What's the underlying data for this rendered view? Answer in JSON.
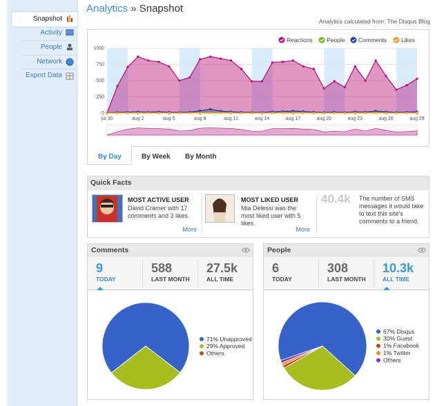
{
  "sidebar": {
    "items": [
      {
        "label": "Snapshot"
      },
      {
        "label": "Activity"
      },
      {
        "label": "People"
      },
      {
        "label": "Network"
      },
      {
        "label": "Export Data"
      }
    ]
  },
  "header": {
    "section": "Analytics",
    "separator": "»",
    "title": "Snapshot",
    "source": "Analytics calculated from: The Disqus Blog"
  },
  "chart_data": [
    {
      "type": "area",
      "categories": [
        "jul 30",
        null,
        null,
        "aug 2",
        null,
        null,
        "aug 5",
        null,
        null,
        "aug 8",
        null,
        null,
        "aug 11",
        null,
        null,
        "aug 14",
        null,
        null,
        "aug 17",
        null,
        null,
        "aug 20",
        null,
        null,
        "aug 23",
        null,
        null,
        "aug 26",
        null,
        null,
        "aug 29"
      ],
      "series": [
        {
          "name": "Reactions",
          "color": "#b8177a",
          "values": [
            0,
            415,
            710,
            870,
            810,
            790,
            720,
            500,
            550,
            830,
            870,
            840,
            810,
            680,
            490,
            490,
            780,
            790,
            810,
            720,
            680,
            380,
            490,
            400,
            720,
            500,
            810,
            570,
            360,
            430,
            530
          ]
        },
        {
          "name": "People",
          "color": "#7fb31a",
          "values": [
            5,
            10,
            15,
            15,
            10,
            10,
            10,
            10,
            15,
            20,
            15,
            15,
            10,
            10,
            10,
            10,
            15,
            15,
            20,
            15,
            10,
            10,
            10,
            10,
            15,
            10,
            15,
            10,
            10,
            10,
            15
          ]
        },
        {
          "name": "Comments",
          "color": "#2a3aa8",
          "values": [
            5,
            10,
            15,
            20,
            15,
            20,
            15,
            10,
            15,
            35,
            60,
            30,
            20,
            15,
            10,
            10,
            20,
            25,
            30,
            25,
            15,
            10,
            15,
            10,
            20,
            15,
            30,
            20,
            10,
            15,
            20
          ]
        },
        {
          "name": "Likes",
          "color": "#f0a020",
          "values": [
            0,
            2,
            3,
            5,
            3,
            2,
            2,
            1,
            2,
            3,
            5,
            4,
            3,
            2,
            1,
            1,
            3,
            4,
            5,
            3,
            2,
            1,
            2,
            1,
            3,
            2,
            4,
            3,
            1,
            2,
            3
          ]
        }
      ],
      "ylim": [
        0,
        1000
      ],
      "yticks": [
        0,
        250,
        500,
        750,
        1000
      ],
      "grid": true,
      "legend": "top-right"
    },
    {
      "type": "pie",
      "labels": [
        "71% Unapproved",
        "29% Approved",
        "Others"
      ],
      "values": [
        71,
        29,
        0
      ],
      "colors": [
        "#3563c9",
        "#a8bd1e",
        "#b0541a"
      ]
    },
    {
      "type": "pie",
      "labels": [
        "67% Disqus",
        "30% Guest",
        "1% Facebook",
        "1% Twitter",
        "Others"
      ],
      "values": [
        67,
        30,
        1,
        1,
        1
      ],
      "colors": [
        "#3563c9",
        "#a8bd1e",
        "#c2451c",
        "#e8932a",
        "#7a34c4"
      ]
    }
  ],
  "tabs": {
    "items": [
      "By Day",
      "By Week",
      "By Month"
    ]
  },
  "quick_facts": {
    "title": "Quick Facts",
    "items": [
      {
        "heading": "MOST ACTIVE USER",
        "text": "David Cramer with 17 comments and 3 likes.",
        "link": "More"
      },
      {
        "heading": "MOST LIKED USER",
        "text": "Mia Delessi was the most liked user with 5 likes.",
        "link": "More"
      }
    ],
    "stat": {
      "value": "40.4k",
      "text": "The number of SMS messages it would take to text this site's comments to a friend."
    }
  },
  "panels": [
    {
      "title": "Comments",
      "selected": 0,
      "stats": [
        {
          "value": 9,
          "label": "TODAY"
        },
        {
          "value": 588,
          "label": "LAST MONTH"
        },
        {
          "value": "27.5k",
          "label": "ALL TIME"
        }
      ]
    },
    {
      "title": "People",
      "selected": 2,
      "stats": [
        {
          "value": 6,
          "label": "TODAY"
        },
        {
          "value": 308,
          "label": "LAST MONTH"
        },
        {
          "value": "10.3k",
          "label": "ALL TIME"
        }
      ]
    }
  ]
}
